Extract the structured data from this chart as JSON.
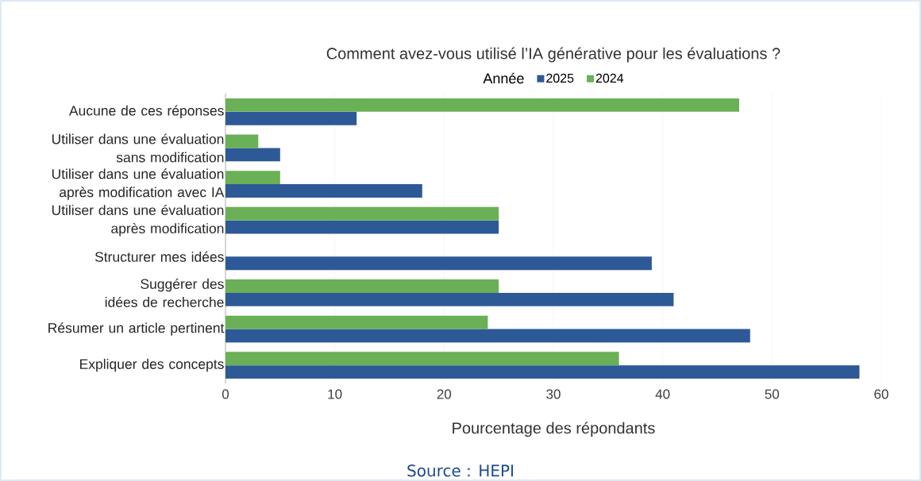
{
  "chart_data": {
    "type": "bar",
    "orientation": "horizontal",
    "title": "Comment avez-vous utilisé l’IA générative pour les évaluations ?",
    "legend_title": "Année",
    "xlabel": "Pourcentage des répondants",
    "categories": [
      "Aucune de ces réponses",
      "Utiliser dans une évaluation sans modification",
      "Utiliser dans une évaluation après modification avec IA",
      "Utiliser dans une évaluation après modification",
      "Structurer mes idées",
      "Suggérer des idées de recherche",
      "Résumer un article pertinent",
      "Expliquer des concepts"
    ],
    "series": [
      {
        "name": "2025",
        "color": "#2d5a96",
        "values": [
          12,
          5,
          18,
          25,
          39,
          41,
          48,
          58
        ]
      },
      {
        "name": "2024",
        "color": "#6ab056",
        "values": [
          47,
          3,
          5,
          25,
          null,
          25,
          24,
          36
        ]
      }
    ],
    "xlim": [
      0,
      60
    ],
    "xticks": [
      0,
      10,
      20,
      30,
      40,
      50,
      60
    ],
    "grid": "x",
    "legend": "top",
    "annotations": [
      "Source : HEPI"
    ]
  }
}
